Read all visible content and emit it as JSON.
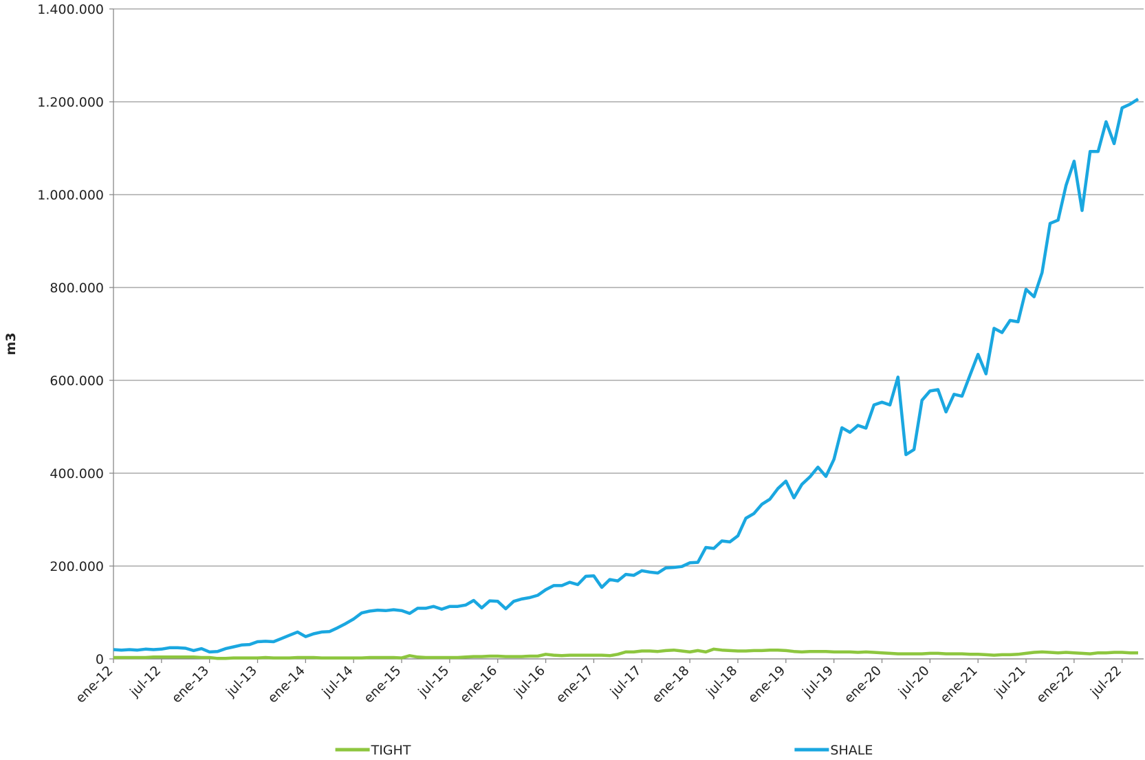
{
  "chart_data": {
    "type": "line",
    "y_label": "m3",
    "categories": [
      "ene-12",
      null,
      null,
      null,
      null,
      null,
      "jul-12",
      null,
      null,
      null,
      null,
      null,
      "ene-13",
      null,
      null,
      null,
      null,
      null,
      "jul-13",
      null,
      null,
      null,
      null,
      null,
      "ene-14",
      null,
      null,
      null,
      null,
      null,
      "jul-14",
      null,
      null,
      null,
      null,
      null,
      "ene-15",
      null,
      null,
      null,
      null,
      null,
      "jul-15",
      null,
      null,
      null,
      null,
      null,
      "ene-16",
      null,
      null,
      null,
      null,
      null,
      "jul-16",
      null,
      null,
      null,
      null,
      null,
      "ene-17",
      null,
      null,
      null,
      null,
      null,
      "jul-17",
      null,
      null,
      null,
      null,
      null,
      "ene-18",
      null,
      null,
      null,
      null,
      null,
      "jul-18",
      null,
      null,
      null,
      null,
      null,
      "ene-19",
      null,
      null,
      null,
      null,
      null,
      "jul-19",
      null,
      null,
      null,
      null,
      null,
      "ene-20",
      null,
      null,
      null,
      null,
      null,
      "jul-20",
      null,
      null,
      null,
      null,
      null,
      "ene-21",
      null,
      null,
      null,
      null,
      null,
      "jul-21",
      null,
      null,
      null,
      null,
      null,
      "ene-22",
      null,
      null,
      null,
      null,
      null,
      "jul-22",
      null,
      null
    ],
    "series": [
      {
        "name": "TIGHT",
        "color": "#8dc63f",
        "values": [
          3000,
          3000,
          3000,
          3000,
          3000,
          4000,
          4000,
          4000,
          4000,
          4000,
          4000,
          3000,
          3000,
          1000,
          1000,
          2000,
          2000,
          2000,
          2000,
          3000,
          2000,
          2000,
          2000,
          3000,
          3000,
          3000,
          2000,
          2000,
          2000,
          2000,
          2000,
          2000,
          3000,
          3000,
          3000,
          3000,
          2000,
          7000,
          4000,
          3000,
          3000,
          3000,
          3000,
          3000,
          4000,
          5000,
          5000,
          6000,
          6000,
          5000,
          5000,
          5000,
          6000,
          6000,
          10000,
          8000,
          7000,
          8000,
          8000,
          8000,
          8000,
          8000,
          7000,
          10000,
          15000,
          15000,
          17000,
          17000,
          16000,
          18000,
          19000,
          17000,
          15000,
          18000,
          15000,
          21000,
          19000,
          18000,
          17000,
          17000,
          18000,
          18000,
          19000,
          19000,
          18000,
          16000,
          15000,
          16000,
          16000,
          16000,
          15000,
          15000,
          15000,
          14000,
          15000,
          14000,
          13000,
          12000,
          11000,
          11000,
          11000,
          11000,
          12000,
          12000,
          11000,
          11000,
          11000,
          10000,
          10000,
          9000,
          8000,
          9000,
          9000,
          10000,
          12000,
          14000,
          15000,
          14000,
          13000,
          14000,
          13000,
          12000,
          11000,
          13000,
          13000,
          14000,
          14000,
          13000,
          13000
        ]
      },
      {
        "name": "SHALE",
        "color": "#1aa7e0",
        "values": [
          20000,
          19000,
          20000,
          19000,
          21000,
          20000,
          21000,
          24000,
          24000,
          23000,
          18000,
          22000,
          15000,
          16000,
          22000,
          26000,
          30000,
          31000,
          37000,
          38000,
          37000,
          44000,
          51000,
          58000,
          48000,
          54000,
          58000,
          59000,
          67000,
          76000,
          86000,
          99000,
          103000,
          105000,
          104000,
          106000,
          104000,
          98000,
          109000,
          109000,
          113000,
          107000,
          113000,
          113000,
          116000,
          126000,
          110000,
          125000,
          124000,
          108000,
          124000,
          129000,
          132000,
          137000,
          149000,
          158000,
          158000,
          165000,
          160000,
          178000,
          179000,
          154000,
          171000,
          168000,
          182000,
          180000,
          190000,
          187000,
          185000,
          196000,
          197000,
          199000,
          207000,
          208000,
          240000,
          238000,
          254000,
          252000,
          265000,
          303000,
          313000,
          333000,
          344000,
          367000,
          383000,
          347000,
          376000,
          392000,
          413000,
          393000,
          430000,
          498000,
          488000,
          503000,
          497000,
          547000,
          553000,
          547000,
          607000,
          440000,
          451000,
          557000,
          577000,
          580000,
          532000,
          570000,
          566000,
          611000,
          656000,
          614000,
          712000,
          703000,
          729000,
          726000,
          796000,
          780000,
          832000,
          938000,
          945000,
          1020000,
          1072000,
          966000,
          1093000,
          1093000,
          1157000,
          1110000,
          1187000,
          1195000,
          1206000
        ]
      }
    ],
    "ylim": [
      0,
      1400000
    ],
    "yticks": [
      0,
      {
        "value": 200000,
        "label": "200.000"
      },
      {
        "value": 400000,
        "label": "400.000"
      },
      {
        "value": 600000,
        "label": "600.000"
      },
      {
        "value": 800000,
        "label": "800.000"
      },
      {
        "value": 1000000,
        "label": "1.000.000"
      },
      {
        "value": 1200000,
        "label": "1.200.000"
      },
      {
        "value": 1400000,
        "label": "1.400.000"
      }
    ],
    "grid": true,
    "legend": "bottom"
  }
}
